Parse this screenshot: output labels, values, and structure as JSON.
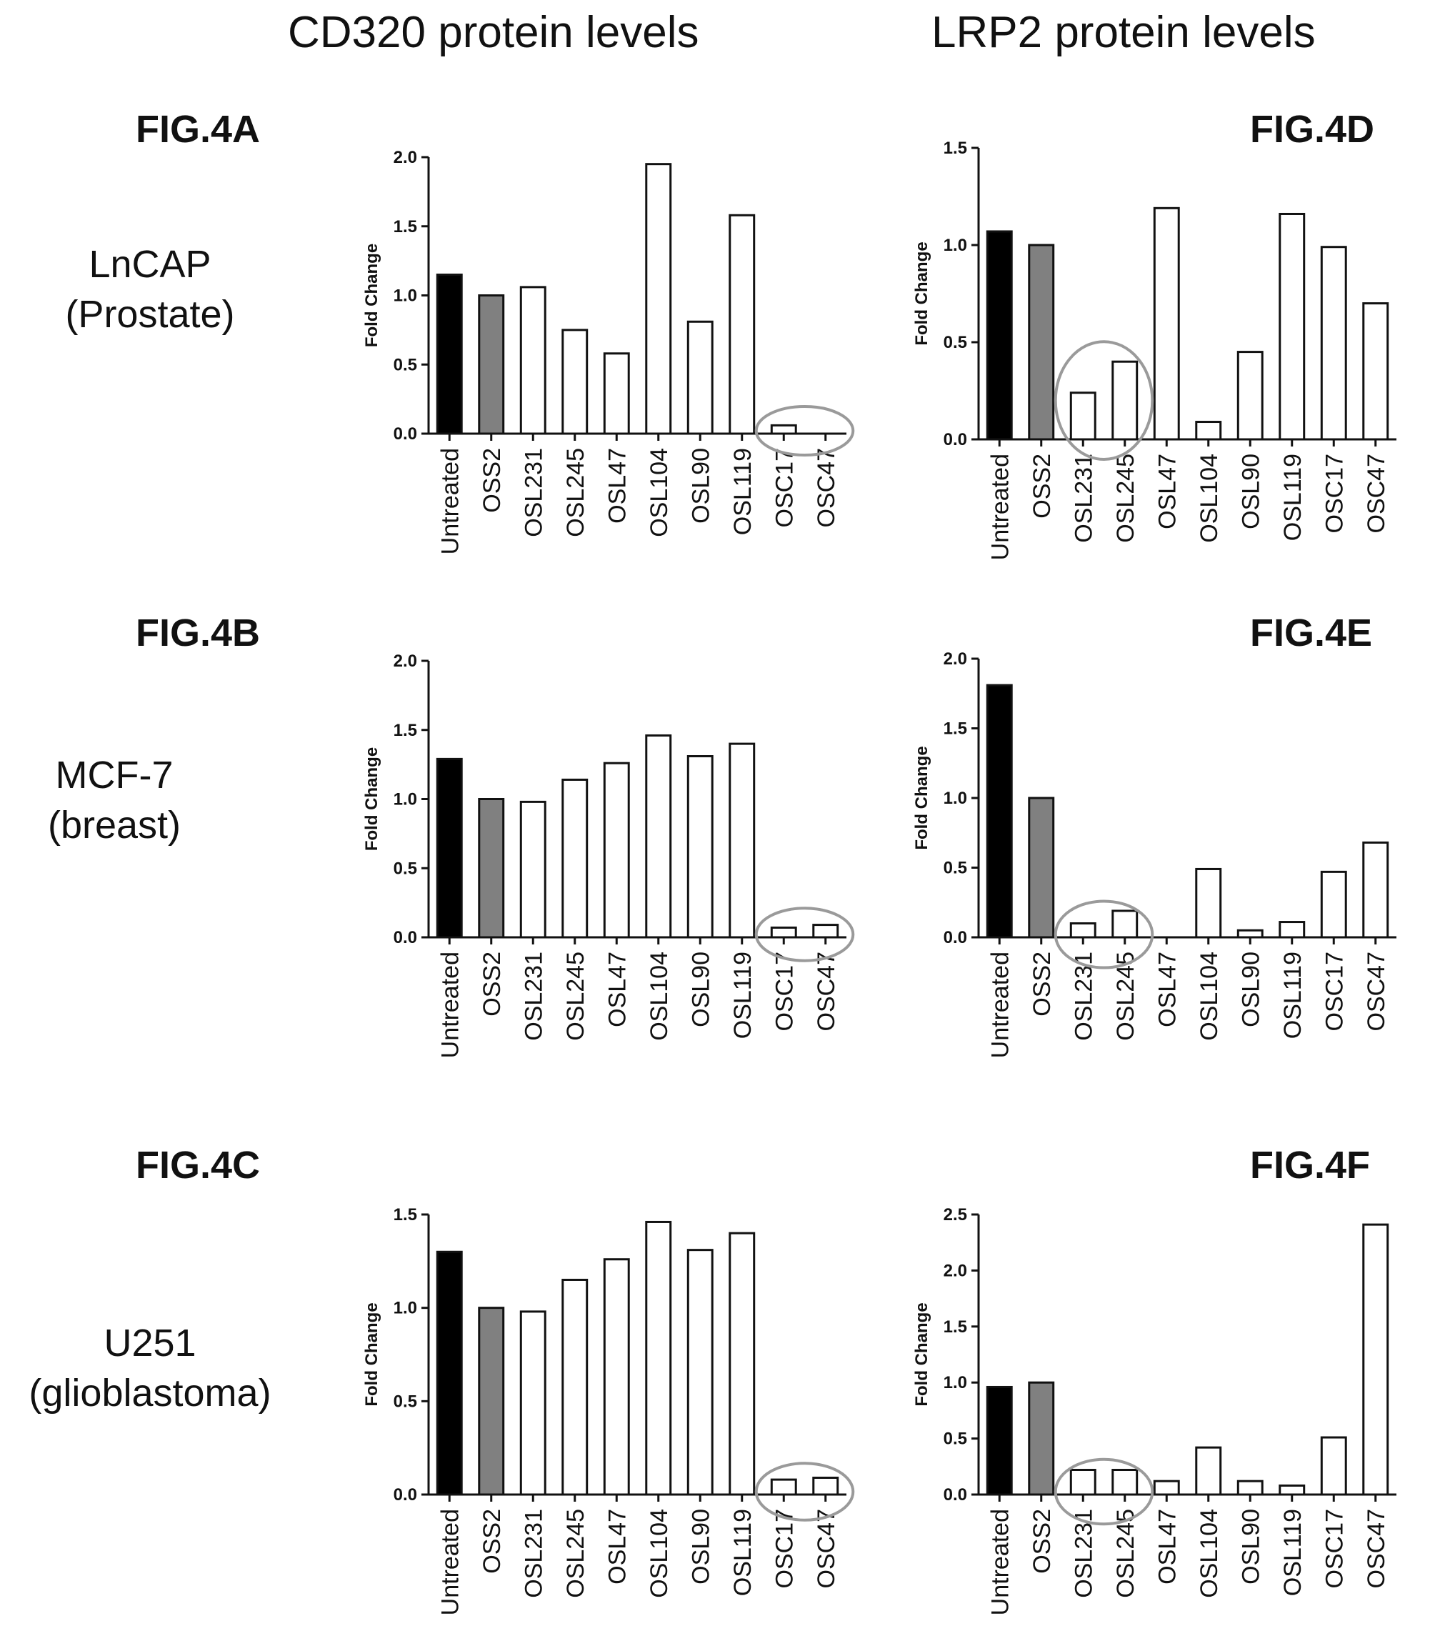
{
  "headers": {
    "left": "CD320 protein levels",
    "right": "LRP2 protein levels"
  },
  "cell_lines": [
    {
      "name": "LnCAP",
      "tissue": "(Prostate)"
    },
    {
      "name": "MCF-7",
      "tissue": "(breast)"
    },
    {
      "name": "U251",
      "tissue": "(glioblastoma)"
    }
  ],
  "colors": {
    "untreated": "#000000",
    "oss2": "#808080",
    "other": "#ffffff",
    "circle": "#9a9a9a"
  },
  "chart_data": [
    {
      "id": "FIG.4A",
      "type": "bar",
      "fig_label": "FIG.4A",
      "ylabel": "Fold Change",
      "ylim": [
        0,
        2.0
      ],
      "yticks": [
        "0.0",
        "0.5",
        "1.0",
        "1.5",
        "2.0"
      ],
      "categories": [
        "Untreated",
        "OSS2",
        "OSL231",
        "OSL245",
        "OSL47",
        "OSL104",
        "OSL90",
        "OSL119",
        "OSC17",
        "OSC47"
      ],
      "values": [
        1.15,
        1.0,
        1.06,
        0.75,
        0.58,
        1.95,
        0.81,
        1.58,
        0.06,
        0.0
      ],
      "circled": [
        "OSC17",
        "OSC47"
      ]
    },
    {
      "id": "FIG.4D",
      "type": "bar",
      "fig_label": "FIG.4D",
      "ylabel": "Fold Change",
      "ylim": [
        0,
        1.5
      ],
      "yticks": [
        "0.0",
        "0.5",
        "1.0",
        "1.5"
      ],
      "categories": [
        "Untreated",
        "OSS2",
        "OSL231",
        "OSL245",
        "OSL47",
        "OSL104",
        "OSL90",
        "OSL119",
        "OSC17",
        "OSC47"
      ],
      "values": [
        1.07,
        1.0,
        0.24,
        0.4,
        1.19,
        0.09,
        0.45,
        1.16,
        0.99,
        0.7
      ],
      "circled": [
        "OSL231",
        "OSL245"
      ]
    },
    {
      "id": "FIG.4B",
      "type": "bar",
      "fig_label": "FIG.4B",
      "ylabel": "Fold Change",
      "ylim": [
        0,
        2.0
      ],
      "yticks": [
        "0.0",
        "0.5",
        "1.0",
        "1.5",
        "2.0"
      ],
      "categories": [
        "Untreated",
        "OSS2",
        "OSL231",
        "OSL245",
        "OSL47",
        "OSL104",
        "OSL90",
        "OSL119",
        "OSC17",
        "OSC47"
      ],
      "values": [
        1.29,
        1.0,
        0.98,
        1.14,
        1.26,
        1.46,
        1.31,
        1.4,
        0.07,
        0.09
      ],
      "circled": [
        "OSC17",
        "OSC47"
      ]
    },
    {
      "id": "FIG.4E",
      "type": "bar",
      "fig_label": "FIG.4E",
      "ylabel": "Fold Change",
      "ylim": [
        0,
        2.0
      ],
      "yticks": [
        "0.0",
        "0.5",
        "1.0",
        "1.5",
        "2.0"
      ],
      "categories": [
        "Untreated",
        "OSS2",
        "OSL231",
        "OSL245",
        "OSL47",
        "OSL104",
        "OSL90",
        "OSL119",
        "OSC17",
        "OSC47"
      ],
      "values": [
        1.81,
        1.0,
        0.1,
        0.19,
        0.0,
        0.49,
        0.05,
        0.11,
        0.47,
        0.68
      ],
      "circled": [
        "OSL231",
        "OSL245"
      ]
    },
    {
      "id": "FIG.4C",
      "type": "bar",
      "fig_label": "FIG.4C",
      "ylabel": "Fold Change",
      "ylim": [
        0,
        1.5
      ],
      "yticks": [
        "0.0",
        "0.5",
        "1.0",
        "1.5"
      ],
      "categories": [
        "Untreated",
        "OSS2",
        "OSL231",
        "OSL245",
        "OSL47",
        "OSL104",
        "OSL90",
        "OSL119",
        "OSC17",
        "OSC47"
      ],
      "values": [
        1.3,
        1.0,
        0.98,
        1.15,
        1.26,
        1.46,
        1.31,
        1.4,
        0.08,
        0.09
      ],
      "circled": [
        "OSC17",
        "OSC47"
      ]
    },
    {
      "id": "FIG.4F",
      "type": "bar",
      "fig_label": "FIG.4F",
      "ylabel": "Fold Change",
      "ylim": [
        0,
        2.5
      ],
      "yticks": [
        "0.0",
        "0.5",
        "1.0",
        "1.5",
        "2.0",
        "2.5"
      ],
      "categories": [
        "Untreated",
        "OSS2",
        "OSL231",
        "OSL245",
        "OSL47",
        "OSL104",
        "OSL90",
        "OSL119",
        "OSC17",
        "OSC47"
      ],
      "values": [
        0.96,
        1.0,
        0.22,
        0.22,
        0.12,
        0.42,
        0.12,
        0.08,
        0.51,
        2.41
      ],
      "circled": [
        "OSL231",
        "OSL245"
      ]
    }
  ]
}
